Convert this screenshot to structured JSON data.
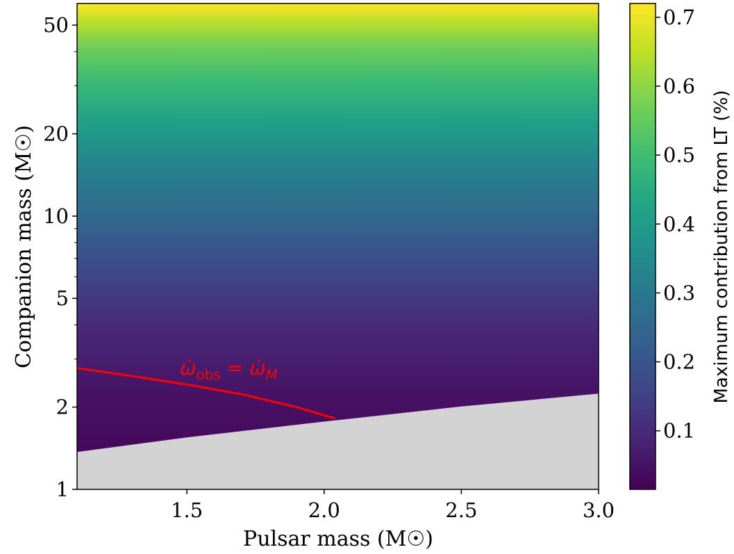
{
  "chart_data": {
    "type": "heatmap",
    "xlabel": "Pulsar mass (M☉)",
    "ylabel": "Companion mass (M☉)",
    "xlim": [
      1.1,
      3.0
    ],
    "ylim": [
      1,
      60
    ],
    "yscale": "log",
    "x_ticks": [
      1.5,
      2.0,
      2.5,
      3.0
    ],
    "x_tick_labels": [
      "1.5",
      "2.0",
      "2.5",
      "3.0"
    ],
    "y_ticks": [
      1,
      2,
      5,
      10,
      20,
      50
    ],
    "y_tick_labels": [
      "1",
      "2",
      "5",
      "10",
      "20",
      "50"
    ],
    "colormap": "viridis",
    "colorbar": {
      "label": "Maximum contribution from LT (%)",
      "range": [
        0.015,
        0.72
      ],
      "ticks": [
        0.1,
        0.2,
        0.3,
        0.4,
        0.5,
        0.6,
        0.7
      ],
      "tick_labels": [
        "0.1",
        "0.2",
        "0.3",
        "0.4",
        "0.5",
        "0.6",
        "0.7"
      ]
    },
    "excluded_region": {
      "color": "#d3d3d3",
      "boundary": [
        {
          "x": 1.1,
          "y": 1.37
        },
        {
          "x": 1.5,
          "y": 1.55
        },
        {
          "x": 2.0,
          "y": 1.77
        },
        {
          "x": 2.5,
          "y": 2.01
        },
        {
          "x": 3.0,
          "y": 2.24
        }
      ]
    },
    "series": [
      {
        "name": "ω̇obs = ω̇M",
        "color": "#ff0000",
        "points": [
          {
            "x": 1.1,
            "y": 2.78
          },
          {
            "x": 1.3,
            "y": 2.6
          },
          {
            "x": 1.5,
            "y": 2.42
          },
          {
            "x": 1.7,
            "y": 2.23
          },
          {
            "x": 1.9,
            "y": 2.0
          },
          {
            "x": 2.04,
            "y": 1.82
          }
        ]
      }
    ],
    "annotation": {
      "base": "ω̇",
      "sub1": "obs",
      "eq": " = ",
      "base2": "ω̇",
      "sub2": "M"
    }
  }
}
